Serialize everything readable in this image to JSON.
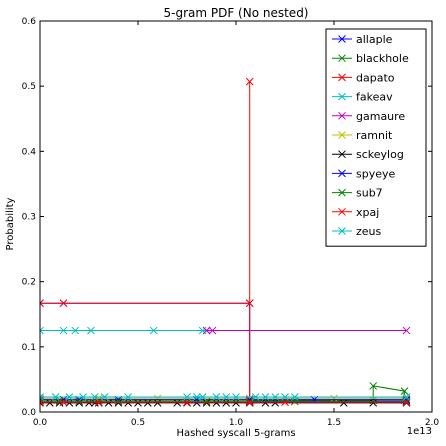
{
  "chart_data": {
    "type": "line",
    "title": "5-gram PDF (No nested)",
    "xlabel": "Hashed syscall 5-grams",
    "ylabel": "Probability",
    "x_offset_label": "1e13",
    "xlim": [
      0,
      20
    ],
    "ylim": [
      0,
      0.6
    ],
    "x_ticks": [
      0,
      5,
      10,
      15,
      20
    ],
    "x_tick_labels": [
      "0.0",
      "0.5",
      "1.0",
      "1.5",
      "2.0"
    ],
    "y_ticks": [
      0,
      0.1,
      0.2,
      0.3,
      0.4,
      0.5,
      0.6
    ],
    "y_tick_labels": [
      "0.0",
      "0.1",
      "0.2",
      "0.3",
      "0.4",
      "0.5",
      "0.6"
    ],
    "grid": false,
    "legend_position": "top-right",
    "series": [
      {
        "name": "allaple",
        "color": "#0000ff",
        "x": [
          0,
          1.2,
          10.7,
          10.7,
          18.7
        ],
        "y": [
          0.167,
          0.167,
          0.167,
          0.017,
          0.017
        ]
      },
      {
        "name": "blackhole",
        "color": "#008000",
        "x": [
          0,
          1.0,
          3.0,
          10.7,
          17.0,
          17.0,
          18.6,
          18.6
        ],
        "y": [
          0.018,
          0.018,
          0.018,
          0.018,
          0.018,
          0.04,
          0.032,
          0.018
        ]
      },
      {
        "name": "dapato",
        "color": "#ff0000",
        "x": [
          0,
          1.2,
          10.7,
          10.7,
          10.7
        ],
        "y": [
          0.167,
          0.167,
          0.167,
          0.507,
          0.017
        ]
      },
      {
        "name": "fakeav",
        "color": "#00bfbf",
        "x": [
          0,
          1.2,
          1.8,
          2.6,
          5.8,
          8.3,
          8.5
        ],
        "y": [
          0.125,
          0.125,
          0.125,
          0.125,
          0.125,
          0.125,
          0.125
        ]
      },
      {
        "name": "gamaure",
        "color": "#bf00bf",
        "x": [
          8.5,
          8.8,
          18.7
        ],
        "y": [
          0.125,
          0.125,
          0.125
        ]
      },
      {
        "name": "ramnit",
        "color": "#bfbf00",
        "x": [
          0,
          3.0,
          6.0,
          10.7,
          15.0,
          18.7
        ],
        "y": [
          0.021,
          0.021,
          0.021,
          0.021,
          0.021,
          0.021
        ]
      },
      {
        "name": "sckeylog",
        "color": "#000000",
        "x": [
          0,
          0.5,
          1.0,
          1.5,
          2.0,
          2.5,
          2.8,
          3.0,
          3.5,
          4.0,
          4.5,
          5.0,
          5.5,
          6.0,
          7.0,
          7.5,
          8.0,
          8.5,
          9.0,
          9.5,
          10.0,
          10.7,
          11.5,
          12.0,
          15.5,
          17.0,
          18.7
        ],
        "y": [
          0.014,
          0.014,
          0.014,
          0.014,
          0.014,
          0.014,
          0.014,
          0.014,
          0.014,
          0.014,
          0.014,
          0.014,
          0.014,
          0.014,
          0.014,
          0.014,
          0.014,
          0.014,
          0.014,
          0.014,
          0.014,
          0.014,
          0.014,
          0.014,
          0.014,
          0.014,
          0.014
        ]
      },
      {
        "name": "spyeye",
        "color": "#0000ff",
        "x": [
          0,
          1.2,
          2.0,
          4.0,
          8.0,
          10.7,
          14.0,
          18.7
        ],
        "y": [
          0.019,
          0.019,
          0.019,
          0.019,
          0.019,
          0.019,
          0.019,
          0.019
        ]
      },
      {
        "name": "sub7",
        "color": "#008000",
        "x": [
          0,
          1.0,
          2.0,
          4.0,
          8.5,
          10.7,
          13.0,
          18.7
        ],
        "y": [
          0.016,
          0.016,
          0.016,
          0.016,
          0.016,
          0.016,
          0.016,
          0.016
        ]
      },
      {
        "name": "xpaj",
        "color": "#ff0000",
        "x": [
          0,
          1.2,
          3.0,
          7.5,
          10.7,
          12.5,
          18.7
        ],
        "y": [
          0.015,
          0.015,
          0.015,
          0.015,
          0.015,
          0.015,
          0.015
        ]
      },
      {
        "name": "zeus",
        "color": "#00bfbf",
        "x": [
          0,
          0.8,
          1.5,
          2.2,
          2.8,
          3.3,
          4.5,
          7.5,
          8.0,
          8.3,
          9.0,
          9.5,
          10.0,
          11.0,
          11.5,
          12.0,
          12.5,
          13.0,
          18.7
        ],
        "y": [
          0.023,
          0.023,
          0.023,
          0.023,
          0.023,
          0.023,
          0.023,
          0.023,
          0.023,
          0.023,
          0.023,
          0.023,
          0.023,
          0.023,
          0.023,
          0.023,
          0.023,
          0.023,
          0.023
        ]
      }
    ]
  }
}
